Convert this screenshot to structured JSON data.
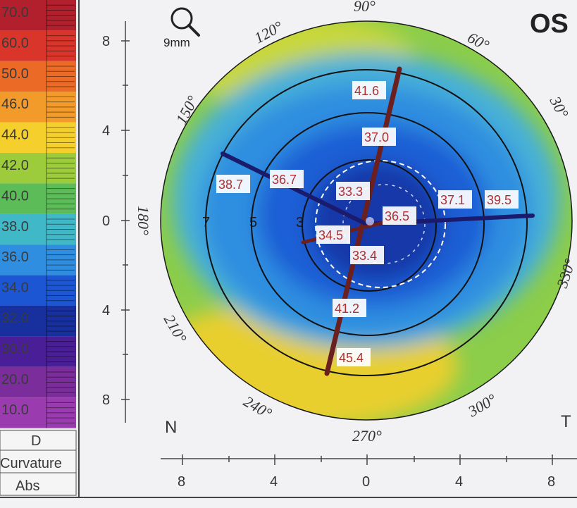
{
  "eye": "OS",
  "zoom": "9mm",
  "colors": {
    "scale_text": "#c0392b",
    "value_text": "#b03030",
    "meridian": "#6b1f1f",
    "meridian_flat": "#1b1b6e"
  },
  "scale": {
    "entries": [
      {
        "value": "70.0",
        "color": "#b2202d"
      },
      {
        "value": "60.0",
        "color": "#d9352b"
      },
      {
        "value": "50.0",
        "color": "#ea6a26"
      },
      {
        "value": "46.0",
        "color": "#f29a2a"
      },
      {
        "value": "44.0",
        "color": "#f5cf2b"
      },
      {
        "value": "42.0",
        "color": "#9ccb3c"
      },
      {
        "value": "40.0",
        "color": "#5cbd58"
      },
      {
        "value": "38.0",
        "color": "#40b8c8"
      },
      {
        "value": "36.0",
        "color": "#2f8ee0"
      },
      {
        "value": "34.0",
        "color": "#1d56d2"
      },
      {
        "value": "32.0",
        "color": "#17309e"
      },
      {
        "value": "30.0",
        "color": "#4a1e97"
      },
      {
        "value": "20.0",
        "color": "#7b2d9b"
      },
      {
        "value": "10.0",
        "color": "#9b3bb0"
      }
    ],
    "unit": "D",
    "mode": "Curvature",
    "type": "Abs"
  },
  "axes": {
    "y_ticks": [
      "8",
      "4",
      "0",
      "4",
      "8"
    ],
    "x_ticks": [
      "8",
      "4",
      "0",
      "4",
      "8"
    ],
    "nasal": "N",
    "temporal": "T"
  },
  "degrees": [
    "90°",
    "60°",
    "30°",
    "330°",
    "300°",
    "270°",
    "240°",
    "210°",
    "180°",
    "150°",
    "120°"
  ],
  "ring_labels": [
    "7",
    "5",
    "3"
  ],
  "readings": {
    "sup_outer": "41.6",
    "sup_inner": "37.0",
    "left_outer": "38.7",
    "left_inner": "36.7",
    "center_top": "33.3",
    "center": "36.5",
    "right_inner": "37.1",
    "right_outer": "39.5",
    "center_left": "34.5",
    "center_bottom": "33.4",
    "inf_inner": "41.2",
    "inf_outer": "45.4"
  }
}
